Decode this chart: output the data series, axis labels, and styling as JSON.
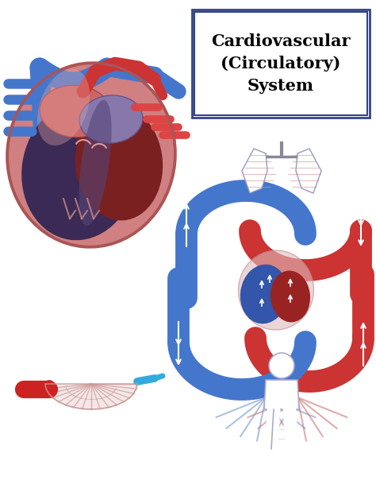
{
  "title": "Cardiovascular\n(Circulatory)\nSystem",
  "title_fontsize": 15,
  "bg_color": "#ffffff",
  "red_artery": "#cc3333",
  "red_dark": "#992222",
  "red_light": "#e08080",
  "red_pink": "#d4909090",
  "blue_vein": "#4477cc",
  "blue_dark": "#223377",
  "blue_medium": "#6688bb",
  "blue_light": "#8899cc",
  "blue_gray": "#7788aa",
  "purple_dark": "#3a2a4a",
  "heart_pink": "#cc7777",
  "heart_red": "#993333",
  "heart_dark_red": "#5a1a1a",
  "heart_purple": "#553366",
  "cap_red": "#cc2222",
  "cap_blue": "#33aadd",
  "body_outline": "#bbbbcc"
}
